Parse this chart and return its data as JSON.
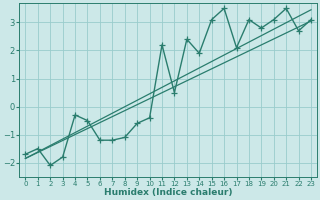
{
  "x_data": [
    0,
    1,
    2,
    3,
    4,
    5,
    6,
    7,
    8,
    9,
    10,
    11,
    12,
    13,
    14,
    15,
    16,
    17,
    18,
    19,
    20,
    21,
    22,
    23
  ],
  "y_data": [
    -1.7,
    -1.5,
    -2.1,
    -1.8,
    -0.3,
    -0.5,
    -1.2,
    -1.2,
    -1.1,
    -0.6,
    -0.4,
    2.2,
    0.5,
    2.4,
    1.9,
    3.1,
    3.5,
    2.1,
    3.1,
    2.8,
    3.1,
    3.5,
    2.7,
    3.1
  ],
  "line_color": "#2a7d6e",
  "bg_color": "#cce8e8",
  "grid_color": "#99cccc",
  "xlabel": "Humidex (Indice chaleur)",
  "ylim": [
    -2.5,
    3.7
  ],
  "xlim": [
    -0.5,
    23.5
  ],
  "yticks": [
    -2,
    -1,
    0,
    1,
    2,
    3
  ],
  "xticks": [
    0,
    1,
    2,
    3,
    4,
    5,
    6,
    7,
    8,
    9,
    10,
    11,
    12,
    13,
    14,
    15,
    16,
    17,
    18,
    19,
    20,
    21,
    22,
    23
  ],
  "marker": "+",
  "linewidth": 1.0,
  "markersize": 4,
  "reg_color": "#2a7d6e",
  "reg_linewidth": 0.9,
  "trend1_x": [
    0,
    23
  ],
  "trend1_y": [
    -1.85,
    3.05
  ],
  "trend2_x": [
    0,
    23
  ],
  "trend2_y": [
    -1.85,
    3.45
  ]
}
